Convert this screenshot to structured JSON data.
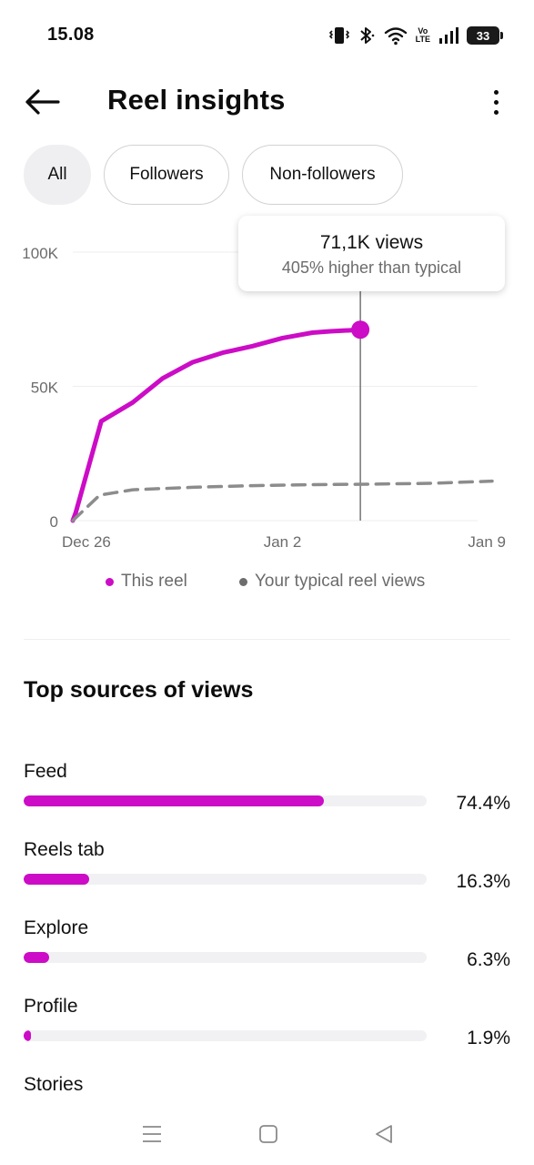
{
  "status_bar": {
    "time": "15.08",
    "volte_top": "Vo",
    "volte_bottom": "LTE",
    "battery": "33"
  },
  "header": {
    "title": "Reel insights"
  },
  "filters": {
    "all": "All",
    "followers": "Followers",
    "non_followers": "Non-followers",
    "active": "All"
  },
  "tooltip": {
    "title": "71,1K views",
    "subtitle": "405% higher than typical"
  },
  "chart_data": {
    "type": "line",
    "x_ticks": [
      "Dec 26",
      "Jan 2",
      "Jan 9"
    ],
    "y_ticks": [
      "0",
      "50K",
      "100K"
    ],
    "ylim": [
      0,
      100000
    ],
    "x_days_range": [
      0,
      14
    ],
    "grid": true,
    "legend": "bottom",
    "series": [
      {
        "name": "This reel",
        "color": "#cc0cc6",
        "style": "solid",
        "x": [
          0,
          0.1,
          0.95,
          2,
          3,
          4,
          5,
          6,
          7,
          8,
          8.6,
          9.6
        ],
        "y": [
          0,
          3000,
          37000,
          44000,
          53000,
          59000,
          62500,
          65000,
          68000,
          70000,
          70500,
          71100
        ]
      },
      {
        "name": "Your typical reel views",
        "color": "#8c8c8c",
        "style": "dashed",
        "x": [
          0,
          0.9,
          2,
          4,
          6,
          8,
          10,
          12,
          14
        ],
        "y": [
          0,
          9500,
          11500,
          12400,
          13000,
          13400,
          13600,
          13900,
          14700
        ]
      }
    ],
    "highlight": {
      "x": 9.6,
      "y": 71100
    }
  },
  "sources": {
    "title": "Top sources of views",
    "items": [
      {
        "label": "Feed",
        "value": "74.4%",
        "fraction": 0.744
      },
      {
        "label": "Reels tab",
        "value": "16.3%",
        "fraction": 0.163
      },
      {
        "label": "Explore",
        "value": "6.3%",
        "fraction": 0.063
      },
      {
        "label": "Profile",
        "value": "1.9%",
        "fraction": 0.019
      },
      {
        "label": "Stories",
        "value": "",
        "fraction": 0
      }
    ]
  },
  "colors": {
    "accent": "#cc0cc6",
    "typical": "#8c8c8c",
    "chip_active_bg": "#efeff1"
  }
}
